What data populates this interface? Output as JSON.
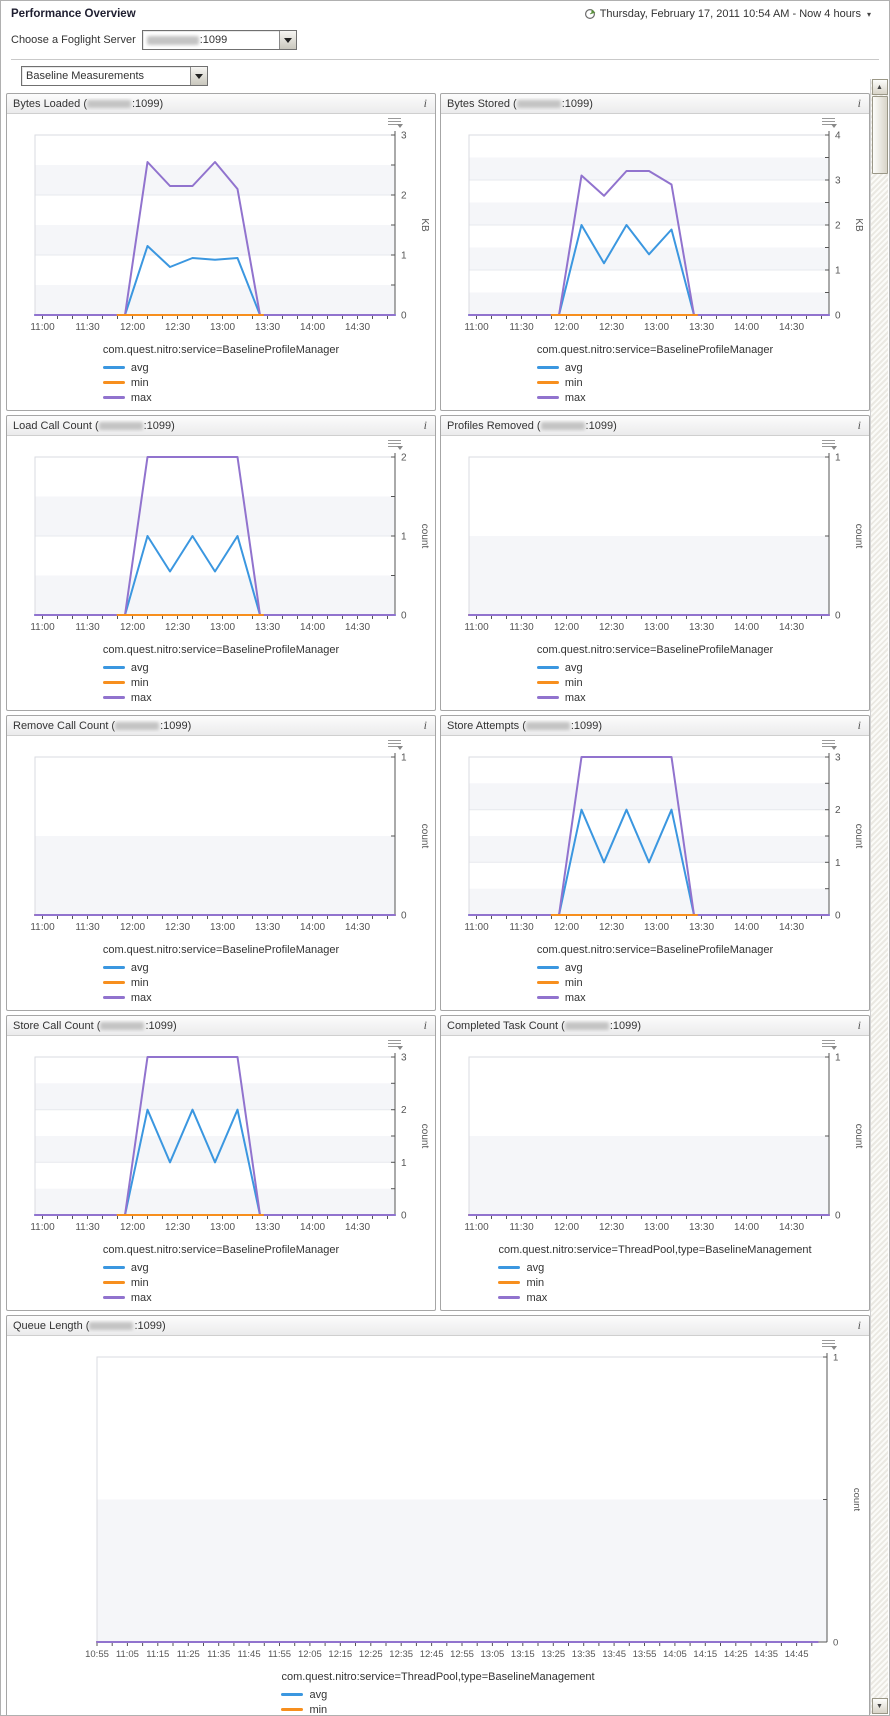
{
  "header": {
    "page_title": "Performance Overview",
    "time_range": "Thursday, February 17, 2011 10:54 AM - Now 4 hours",
    "server_label": "Choose a Foglight Server",
    "server_value_suffix": ":1099",
    "view_selector": "Baseline Measurements"
  },
  "icons": {
    "info": "i",
    "scroll_up": "▲",
    "scroll_down": "▼"
  },
  "legend_labels": {
    "avg": "avg",
    "min": "min",
    "max": "max"
  },
  "colors": {
    "avg": "#3b97e0",
    "min": "#f78f1e",
    "max": "#9173ce",
    "grid": "#e7e9ee",
    "band": "#f5f6f9",
    "axis": "#555555"
  },
  "x_axes": {
    "small": {
      "total_minutes": 240,
      "start_time": "10:55",
      "end_time": "14:55",
      "tick_start": 5,
      "tick_step": 10,
      "labels": [
        {
          "t": 5,
          "label": "11:00"
        },
        {
          "t": 35,
          "label": "11:30"
        },
        {
          "t": 65,
          "label": "12:00"
        },
        {
          "t": 95,
          "label": "12:30"
        },
        {
          "t": 125,
          "label": "13:00"
        },
        {
          "t": 155,
          "label": "13:30"
        },
        {
          "t": 185,
          "label": "14:00"
        },
        {
          "t": 215,
          "label": "14:30"
        }
      ]
    },
    "wide": {
      "total_minutes": 240,
      "start_time": "10:55",
      "end_time": "14:55",
      "tick_start": 0,
      "tick_step": 5,
      "labels": [
        {
          "t": 0,
          "label": "10:55"
        },
        {
          "t": 10,
          "label": "11:05"
        },
        {
          "t": 20,
          "label": "11:15"
        },
        {
          "t": 30,
          "label": "11:25"
        },
        {
          "t": 40,
          "label": "11:35"
        },
        {
          "t": 50,
          "label": "11:45"
        },
        {
          "t": 60,
          "label": "11:55"
        },
        {
          "t": 70,
          "label": "12:05"
        },
        {
          "t": 80,
          "label": "12:15"
        },
        {
          "t": 90,
          "label": "12:25"
        },
        {
          "t": 100,
          "label": "12:35"
        },
        {
          "t": 110,
          "label": "12:45"
        },
        {
          "t": 120,
          "label": "12:55"
        },
        {
          "t": 130,
          "label": "13:05"
        },
        {
          "t": 140,
          "label": "13:15"
        },
        {
          "t": 150,
          "label": "13:25"
        },
        {
          "t": 160,
          "label": "13:35"
        },
        {
          "t": 170,
          "label": "13:45"
        },
        {
          "t": 180,
          "label": "13:55"
        },
        {
          "t": 190,
          "label": "14:05"
        },
        {
          "t": 200,
          "label": "14:15"
        },
        {
          "t": 210,
          "label": "14:25"
        },
        {
          "t": 220,
          "label": "14:35"
        },
        {
          "t": 230,
          "label": "14:45"
        }
      ]
    }
  },
  "panels": [
    {
      "title_prefix": "Bytes Loaded (",
      "title_suffix": ":1099)",
      "wide": false,
      "legend_service": "com.quest.nitro:service=BaselineProfileManager",
      "chart_data": {
        "type": "line",
        "ylabel": "KB",
        "ymax": 3,
        "ylabel_step": 1,
        "ytick_step": 0.5,
        "x_axis": "small",
        "series": [
          {
            "name": "avg",
            "points": [
              [
                0,
                0
              ],
              [
                60,
                0
              ],
              [
                75,
                1.15
              ],
              [
                90,
                0.8
              ],
              [
                105,
                0.95
              ],
              [
                120,
                0.92
              ],
              [
                135,
                0.95
              ],
              [
                150,
                0
              ],
              [
                240,
                0
              ]
            ]
          },
          {
            "name": "max",
            "points": [
              [
                0,
                0
              ],
              [
                60,
                0
              ],
              [
                75,
                2.55
              ],
              [
                90,
                2.15
              ],
              [
                105,
                2.15
              ],
              [
                120,
                2.55
              ],
              [
                135,
                2.1
              ],
              [
                150,
                0
              ],
              [
                240,
                0
              ]
            ]
          },
          {
            "name": "min",
            "points": [
              [
                55,
                0
              ],
              [
                152,
                0
              ]
            ]
          }
        ]
      }
    },
    {
      "title_prefix": "Bytes Stored (",
      "title_suffix": ":1099)",
      "wide": false,
      "legend_service": "com.quest.nitro:service=BaselineProfileManager",
      "chart_data": {
        "type": "line",
        "ylabel": "KB",
        "ymax": 4,
        "ylabel_step": 1,
        "ytick_step": 0.5,
        "x_axis": "small",
        "series": [
          {
            "name": "avg",
            "points": [
              [
                0,
                0
              ],
              [
                60,
                0
              ],
              [
                75,
                2.0
              ],
              [
                90,
                1.15
              ],
              [
                105,
                2.0
              ],
              [
                120,
                1.35
              ],
              [
                135,
                1.9
              ],
              [
                150,
                0
              ],
              [
                240,
                0
              ]
            ]
          },
          {
            "name": "max",
            "points": [
              [
                0,
                0
              ],
              [
                60,
                0
              ],
              [
                75,
                3.1
              ],
              [
                90,
                2.65
              ],
              [
                105,
                3.2
              ],
              [
                120,
                3.2
              ],
              [
                135,
                2.9
              ],
              [
                150,
                0
              ],
              [
                240,
                0
              ]
            ]
          },
          {
            "name": "min",
            "points": [
              [
                55,
                0
              ],
              [
                152,
                0
              ]
            ]
          }
        ]
      }
    },
    {
      "title_prefix": "Load Call Count (",
      "title_suffix": ":1099)",
      "wide": false,
      "legend_service": "com.quest.nitro:service=BaselineProfileManager",
      "chart_data": {
        "type": "line",
        "ylabel": "count",
        "ymax": 2,
        "ylabel_step": 1,
        "ytick_step": 0.5,
        "x_axis": "small",
        "series": [
          {
            "name": "avg",
            "points": [
              [
                0,
                0
              ],
              [
                60,
                0
              ],
              [
                75,
                1
              ],
              [
                90,
                0.55
              ],
              [
                105,
                1
              ],
              [
                120,
                0.55
              ],
              [
                135,
                1
              ],
              [
                150,
                0
              ],
              [
                240,
                0
              ]
            ]
          },
          {
            "name": "max",
            "points": [
              [
                0,
                0
              ],
              [
                60,
                0
              ],
              [
                75,
                2
              ],
              [
                135,
                2
              ],
              [
                150,
                0
              ],
              [
                240,
                0
              ]
            ]
          },
          {
            "name": "min",
            "points": [
              [
                55,
                0
              ],
              [
                152,
                0
              ]
            ]
          }
        ]
      }
    },
    {
      "title_prefix": "Profiles Removed (",
      "title_suffix": ":1099)",
      "wide": false,
      "legend_service": "com.quest.nitro:service=BaselineProfileManager",
      "chart_data": {
        "type": "line",
        "ylabel": "count",
        "ymax": 1,
        "ylabel_step": 1,
        "ytick_step": 0.5,
        "x_axis": "small",
        "series": [
          {
            "name": "avg",
            "points": [
              [
                0,
                0
              ],
              [
                240,
                0
              ]
            ]
          },
          {
            "name": "min",
            "points": [
              [
                0,
                0
              ],
              [
                240,
                0
              ]
            ]
          },
          {
            "name": "max",
            "points": [
              [
                0,
                0
              ],
              [
                240,
                0
              ]
            ]
          }
        ]
      }
    },
    {
      "title_prefix": "Remove Call Count (",
      "title_suffix": ":1099)",
      "wide": false,
      "legend_service": "com.quest.nitro:service=BaselineProfileManager",
      "chart_data": {
        "type": "line",
        "ylabel": "count",
        "ymax": 1,
        "ylabel_step": 1,
        "ytick_step": 0.5,
        "x_axis": "small",
        "series": [
          {
            "name": "avg",
            "points": [
              [
                0,
                0
              ],
              [
                240,
                0
              ]
            ]
          },
          {
            "name": "min",
            "points": [
              [
                0,
                0
              ],
              [
                240,
                0
              ]
            ]
          },
          {
            "name": "max",
            "points": [
              [
                0,
                0
              ],
              [
                240,
                0
              ]
            ]
          }
        ]
      }
    },
    {
      "title_prefix": "Store Attempts (",
      "title_suffix": ":1099)",
      "wide": false,
      "legend_service": "com.quest.nitro:service=BaselineProfileManager",
      "chart_data": {
        "type": "line",
        "ylabel": "count",
        "ymax": 3,
        "ylabel_step": 1,
        "ytick_step": 0.5,
        "x_axis": "small",
        "series": [
          {
            "name": "avg",
            "points": [
              [
                0,
                0
              ],
              [
                60,
                0
              ],
              [
                75,
                2
              ],
              [
                90,
                1
              ],
              [
                105,
                2
              ],
              [
                120,
                1
              ],
              [
                135,
                2
              ],
              [
                150,
                0
              ],
              [
                240,
                0
              ]
            ]
          },
          {
            "name": "max",
            "points": [
              [
                0,
                0
              ],
              [
                60,
                0
              ],
              [
                75,
                3
              ],
              [
                135,
                3
              ],
              [
                150,
                0
              ],
              [
                240,
                0
              ]
            ]
          },
          {
            "name": "min",
            "points": [
              [
                55,
                0
              ],
              [
                152,
                0
              ]
            ]
          }
        ]
      }
    },
    {
      "title_prefix": "Store Call Count (",
      "title_suffix": ":1099)",
      "wide": false,
      "legend_service": "com.quest.nitro:service=BaselineProfileManager",
      "chart_data": {
        "type": "line",
        "ylabel": "count",
        "ymax": 3,
        "ylabel_step": 1,
        "ytick_step": 0.5,
        "x_axis": "small",
        "series": [
          {
            "name": "avg",
            "points": [
              [
                0,
                0
              ],
              [
                60,
                0
              ],
              [
                75,
                2
              ],
              [
                90,
                1
              ],
              [
                105,
                2
              ],
              [
                120,
                1
              ],
              [
                135,
                2
              ],
              [
                150,
                0
              ],
              [
                240,
                0
              ]
            ]
          },
          {
            "name": "max",
            "points": [
              [
                0,
                0
              ],
              [
                60,
                0
              ],
              [
                75,
                3
              ],
              [
                135,
                3
              ],
              [
                150,
                0
              ],
              [
                240,
                0
              ]
            ]
          },
          {
            "name": "min",
            "points": [
              [
                55,
                0
              ],
              [
                152,
                0
              ]
            ]
          }
        ]
      }
    },
    {
      "title_prefix": "Completed Task Count (",
      "title_suffix": ":1099)",
      "wide": false,
      "legend_service": "com.quest.nitro:service=ThreadPool,type=BaselineManagement",
      "chart_data": {
        "type": "line",
        "ylabel": "count",
        "ymax": 1,
        "ylabel_step": 1,
        "ytick_step": 0.5,
        "x_axis": "small",
        "series": [
          {
            "name": "avg",
            "points": [
              [
                0,
                0
              ],
              [
                240,
                0
              ]
            ]
          },
          {
            "name": "min",
            "points": [
              [
                0,
                0
              ],
              [
                240,
                0
              ]
            ]
          },
          {
            "name": "max",
            "points": [
              [
                0,
                0
              ],
              [
                240,
                0
              ]
            ]
          }
        ]
      }
    },
    {
      "title_prefix": "Queue Length (",
      "title_suffix": ":1099)",
      "wide": true,
      "legend_service": "com.quest.nitro:service=ThreadPool,type=BaselineManagement",
      "chart_data": {
        "type": "line",
        "ylabel": "count",
        "ymax": 1,
        "ylabel_step": 1,
        "ytick_step": 0.5,
        "x_axis": "wide",
        "series": [
          {
            "name": "avg",
            "points": [
              [
                0,
                0
              ],
              [
                237,
                0
              ]
            ]
          },
          {
            "name": "min",
            "points": [
              [
                0,
                0
              ],
              [
                237,
                0
              ]
            ]
          },
          {
            "name": "max",
            "points": [
              [
                0,
                0
              ],
              [
                237,
                0
              ]
            ]
          }
        ]
      }
    }
  ]
}
